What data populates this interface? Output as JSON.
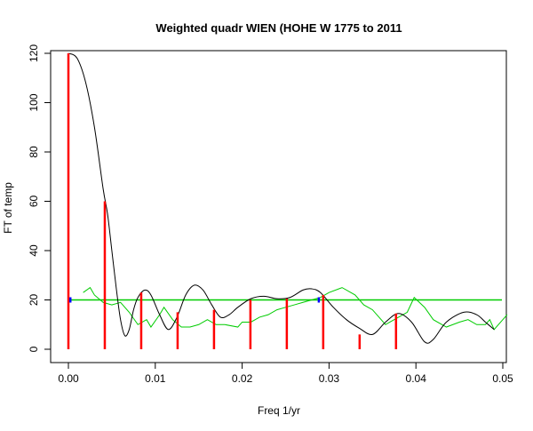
{
  "chart_data": {
    "type": "line",
    "title": "Weighted quadr WIEN (HOHE W 1775 to 2011",
    "xlabel": "Freq 1/yr",
    "ylabel": "FT of temp",
    "xlim": [
      0,
      0.05
    ],
    "ylim": [
      0,
      120
    ],
    "xticks": [
      "0.00",
      "0.01",
      "0.02",
      "0.03",
      "0.04",
      "0.05"
    ],
    "xtick_values": [
      0,
      0.01,
      0.02,
      0.03,
      0.04,
      0.05
    ],
    "yticks": [
      "0",
      "20",
      "40",
      "60",
      "80",
      "100",
      "120"
    ],
    "ytick_values": [
      0,
      20,
      40,
      60,
      80,
      100,
      120
    ],
    "grid": false,
    "colors": {
      "black_curve": "#000000",
      "green_curve": "#00cc00",
      "spikes": "#ff0000",
      "markers": "#0000ff",
      "reference": "#00cc00"
    },
    "series": [
      {
        "name": "black-curve",
        "x": [
          0,
          0.001,
          0.002,
          0.003,
          0.004,
          0.0045,
          0.005,
          0.0055,
          0.006,
          0.0065,
          0.007,
          0.0075,
          0.008,
          0.0088,
          0.0095,
          0.0105,
          0.0115,
          0.0125,
          0.0135,
          0.0145,
          0.0155,
          0.0165,
          0.0175,
          0.0185,
          0.0195,
          0.021,
          0.0225,
          0.024,
          0.0255,
          0.027,
          0.028,
          0.029,
          0.0305,
          0.032,
          0.0335,
          0.035,
          0.0365,
          0.038,
          0.0395,
          0.041,
          0.042,
          0.0435,
          0.0455,
          0.047,
          0.048,
          0.049
        ],
        "y": [
          120,
          118,
          108,
          90,
          65,
          55,
          40,
          25,
          12,
          5.5,
          8,
          16,
          21,
          24,
          22,
          14,
          8,
          13,
          22,
          26,
          24,
          18,
          13,
          14,
          17,
          20.5,
          21.5,
          20.5,
          21,
          24,
          24.5,
          23,
          17,
          12,
          8.5,
          6,
          11,
          14.5,
          11,
          3,
          4,
          11,
          15,
          14,
          11,
          8
        ]
      },
      {
        "name": "green-curve",
        "x": [
          0.0017,
          0.0025,
          0.003,
          0.004,
          0.005,
          0.006,
          0.007,
          0.008,
          0.009,
          0.0095,
          0.0105,
          0.011,
          0.012,
          0.013,
          0.014,
          0.015,
          0.016,
          0.017,
          0.018,
          0.0195,
          0.02,
          0.021,
          0.022,
          0.023,
          0.024,
          0.025,
          0.026,
          0.027,
          0.028,
          0.029,
          0.03,
          0.0315,
          0.033,
          0.034,
          0.035,
          0.036,
          0.0365,
          0.037,
          0.039,
          0.0398,
          0.041,
          0.042,
          0.0435,
          0.045,
          0.046,
          0.047,
          0.048,
          0.0485,
          0.049,
          0.05,
          0.0505
        ],
        "y": [
          23,
          25,
          22,
          19,
          18,
          19,
          15,
          10,
          12,
          9,
          14,
          17,
          12,
          9,
          9,
          10,
          12,
          10,
          10,
          9,
          11,
          11,
          13,
          14,
          16,
          17,
          18,
          19,
          20,
          21,
          23,
          25,
          22,
          18,
          16,
          12,
          10,
          11,
          15,
          21,
          17,
          12,
          9,
          11,
          12,
          10,
          10,
          12,
          8,
          12,
          14
        ]
      },
      {
        "name": "reference-line",
        "x": [
          0,
          0.0499
        ],
        "y": [
          20,
          20
        ]
      }
    ],
    "spikes": {
      "x": [
        0,
        0.00419,
        0.00838,
        0.01257,
        0.01676,
        0.02095,
        0.02514,
        0.02933,
        0.03352,
        0.03771
      ],
      "y": [
        120,
        60,
        23,
        15,
        16,
        20,
        20.5,
        22,
        6,
        14.5
      ]
    },
    "markers": {
      "x": [
        0.0002,
        0.0288
      ],
      "y": [
        20,
        20
      ]
    }
  }
}
